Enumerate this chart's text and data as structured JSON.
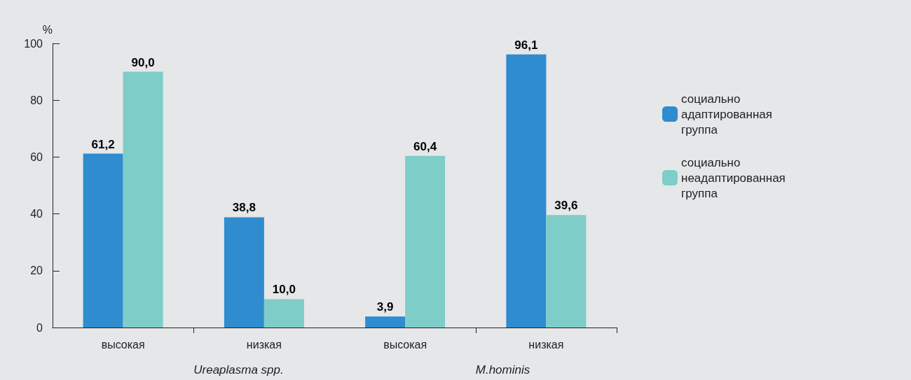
{
  "chart_data": {
    "type": "bar",
    "ylabel": "%",
    "categories": [
      "высокая",
      "низкая",
      "высокая",
      "низкая"
    ],
    "series": [
      {
        "name": "социально адаптированная группа",
        "color": "#2f8ccf",
        "values": [
          61.2,
          38.8,
          3.9,
          96.1
        ],
        "value_labels": [
          "61,2",
          "38,8",
          "3,9",
          "96,1"
        ]
      },
      {
        "name": "социально неадаптированная группа",
        "color": "#7ecdc8",
        "values": [
          90.0,
          10.0,
          60.4,
          39.6
        ],
        "value_labels": [
          "90,0",
          "10,0",
          "60,4",
          "39,6"
        ]
      }
    ],
    "ylim": [
      0,
      100
    ],
    "yticks": [
      0,
      20,
      40,
      60,
      80,
      100
    ],
    "grid": false,
    "legend": "right",
    "annotations": [
      "Ureaplasma spp.",
      "M.hominis"
    ]
  }
}
